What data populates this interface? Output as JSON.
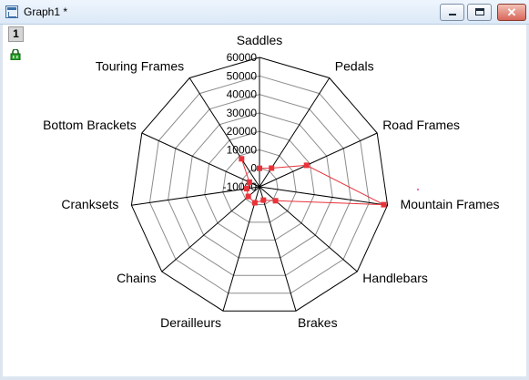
{
  "window": {
    "title": "Graph1 *",
    "layer_label": "1",
    "close_glyph": "✕"
  },
  "chart_data": {
    "type": "radar",
    "categories": [
      "Saddles",
      "Pedals",
      "Road Frames",
      "Mountain Frames",
      "Handlebars",
      "Brakes",
      "Derailleurs",
      "Chains",
      "Cranksets",
      "Bottom Brackets",
      "Touring Frames"
    ],
    "axis_ticks": [
      60000,
      50000,
      40000,
      30000,
      20000,
      10000,
      0,
      -10000
    ],
    "rlim": [
      -10000,
      60000
    ],
    "series": [
      {
        "color": "#e8333a",
        "values": [
          0,
          2000,
          18000,
          58000,
          1500,
          -2500,
          -1000,
          -2000,
          -3000,
          -4000,
          8000
        ]
      }
    ],
    "grid": true
  }
}
